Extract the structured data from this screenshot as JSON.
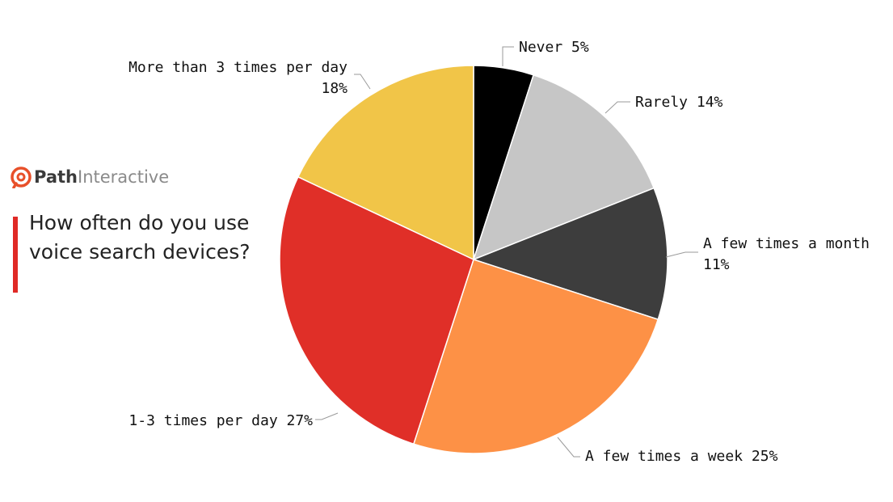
{
  "brand": {
    "name_bold": "Path",
    "name_light": "Interactive",
    "color": "#e8502a"
  },
  "question": "How often do you use voice search devices?",
  "chart_data": {
    "type": "pie",
    "title": "How often do you use voice search devices?",
    "slices": [
      {
        "label": "Never",
        "value": 5,
        "color": "#000000",
        "label_lines": [
          "Never 5%"
        ]
      },
      {
        "label": "Rarely",
        "value": 14,
        "color": "#c6c6c6",
        "label_lines": [
          "Rarely 14%"
        ]
      },
      {
        "label": "A few times a month",
        "value": 11,
        "color": "#3d3d3d",
        "label_lines": [
          "A few times a month",
          "11%"
        ]
      },
      {
        "label": "A few times a week",
        "value": 25,
        "color": "#fd9146",
        "label_lines": [
          "A few times a week 25%"
        ]
      },
      {
        "label": "1-3 times per day",
        "value": 27,
        "color": "#e02f28",
        "label_lines": [
          "1-3 times per day 27%"
        ]
      },
      {
        "label": "More than 3 times per day",
        "value": 18,
        "color": "#f1c548",
        "label_lines": [
          "More than 3 times per day",
          "18%"
        ]
      }
    ]
  }
}
